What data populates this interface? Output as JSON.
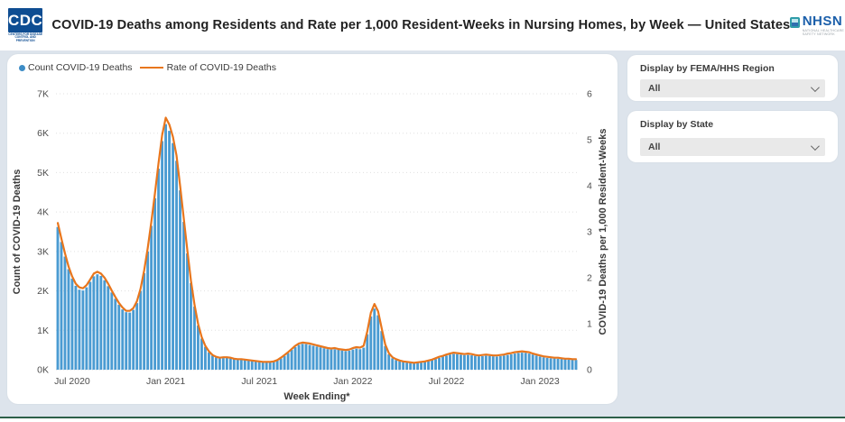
{
  "header": {
    "cdc_logo_text": "CDC",
    "cdc_logo_subtext": "Centers for Disease Control and Prevention",
    "title": "COVID-19 Deaths among Residents and Rate per 1,000 Resident-Weeks in Nursing Homes, by Week — United States",
    "nhsn_logo_text": "NHSN",
    "nhsn_logo_subtext": "NATIONAL HEALTHCARE SAFETY NETWORK"
  },
  "legend": {
    "count_label": "Count COVID-19 Deaths",
    "rate_label": "Rate of COVID-19 Deaths"
  },
  "filters": {
    "region": {
      "label": "Display by FEMA/HHS Region",
      "value": "All"
    },
    "state": {
      "label": "Display by State",
      "value": "All"
    }
  },
  "colors": {
    "bar": "#4A9BD2",
    "line": "#E8761D",
    "legend_dot": "#3D8CC6",
    "axis_text": "#4d4d4d",
    "axis_title": "#3a3a3a",
    "grid": "#e0e0e0"
  },
  "chart_data": {
    "type": "combo-bar-line",
    "title": "COVID-19 Deaths among Residents and Rate per 1,000 Resident-Weeks in Nursing Homes, by Week — United States",
    "x": {
      "label": "Week Ending*",
      "tick_labels": [
        "Jul 2020",
        "Jan 2021",
        "Jul 2021",
        "Jan 2022",
        "Jul 2022",
        "Jan 2023"
      ],
      "tick_week_indices": [
        4,
        30,
        56,
        82,
        108,
        134
      ],
      "n_weeks": 145
    },
    "y_left": {
      "label": "Count of COVID-19 Deaths",
      "ticks": [
        "0K",
        "1K",
        "2K",
        "3K",
        "4K",
        "5K",
        "6K",
        "7K"
      ],
      "min": 0,
      "max": 7000
    },
    "y_right": {
      "label": "COVID-19 Deaths per 1,000 Resident-Weeks",
      "ticks": [
        "0",
        "1",
        "2",
        "3",
        "4",
        "5",
        "6"
      ],
      "min": 0,
      "max": 6
    },
    "grid": "dotted-horizontal",
    "legend_position": "top-left",
    "series": [
      {
        "name": "Count COVID-19 Deaths",
        "type": "bar",
        "axis": "left",
        "values": [
          3620,
          3240,
          2870,
          2550,
          2310,
          2130,
          2030,
          2010,
          2090,
          2230,
          2370,
          2420,
          2380,
          2270,
          2120,
          1960,
          1800,
          1650,
          1530,
          1460,
          1450,
          1520,
          1690,
          2000,
          2450,
          3000,
          3650,
          4350,
          5100,
          5800,
          6230,
          6060,
          5750,
          5300,
          4550,
          3750,
          2950,
          2200,
          1600,
          1120,
          790,
          580,
          440,
          360,
          310,
          285,
          295,
          300,
          290,
          272,
          258,
          250,
          243,
          232,
          222,
          210,
          198,
          190,
          186,
          192,
          205,
          235,
          285,
          350,
          425,
          505,
          575,
          630,
          655,
          648,
          628,
          608,
          588,
          568,
          545,
          522,
          512,
          518,
          505,
          488,
          472,
          482,
          512,
          535,
          520,
          560,
          900,
          1350,
          1550,
          1380,
          980,
          600,
          390,
          290,
          245,
          215,
          195,
          180,
          170,
          165,
          170,
          180,
          195,
          215,
          240,
          270,
          300,
          330,
          360,
          385,
          400,
          395,
          380,
          370,
          375,
          365,
          350,
          340,
          345,
          355,
          350,
          340,
          335,
          345,
          360,
          375,
          390,
          410,
          425,
          432,
          428,
          410,
          385,
          360,
          335,
          315,
          300,
          290,
          285,
          280,
          272,
          265,
          258,
          252,
          248
        ]
      },
      {
        "name": "Rate of COVID-19 Deaths",
        "type": "line",
        "axis": "right",
        "values": [
          3.19,
          2.85,
          2.53,
          2.24,
          2.03,
          1.87,
          1.79,
          1.77,
          1.84,
          1.96,
          2.09,
          2.13,
          2.09,
          2.0,
          1.87,
          1.72,
          1.58,
          1.45,
          1.35,
          1.28,
          1.28,
          1.34,
          1.49,
          1.76,
          2.16,
          2.64,
          3.21,
          3.83,
          4.49,
          5.1,
          5.48,
          5.33,
          5.06,
          4.66,
          4.0,
          3.3,
          2.6,
          1.94,
          1.41,
          0.99,
          0.71,
          0.52,
          0.4,
          0.32,
          0.28,
          0.26,
          0.27,
          0.27,
          0.26,
          0.24,
          0.23,
          0.23,
          0.22,
          0.21,
          0.2,
          0.19,
          0.18,
          0.17,
          0.17,
          0.17,
          0.18,
          0.21,
          0.26,
          0.32,
          0.38,
          0.45,
          0.52,
          0.57,
          0.59,
          0.58,
          0.57,
          0.55,
          0.53,
          0.51,
          0.49,
          0.47,
          0.46,
          0.47,
          0.45,
          0.44,
          0.43,
          0.44,
          0.47,
          0.49,
          0.48,
          0.52,
          0.83,
          1.24,
          1.43,
          1.27,
          0.9,
          0.55,
          0.36,
          0.27,
          0.23,
          0.2,
          0.18,
          0.17,
          0.16,
          0.15,
          0.16,
          0.17,
          0.18,
          0.2,
          0.22,
          0.25,
          0.28,
          0.3,
          0.33,
          0.35,
          0.37,
          0.36,
          0.35,
          0.34,
          0.35,
          0.34,
          0.32,
          0.31,
          0.32,
          0.33,
          0.32,
          0.31,
          0.31,
          0.32,
          0.33,
          0.35,
          0.36,
          0.38,
          0.39,
          0.4,
          0.39,
          0.38,
          0.35,
          0.33,
          0.31,
          0.29,
          0.28,
          0.27,
          0.26,
          0.26,
          0.25,
          0.24,
          0.24,
          0.23,
          0.23
        ]
      }
    ]
  }
}
